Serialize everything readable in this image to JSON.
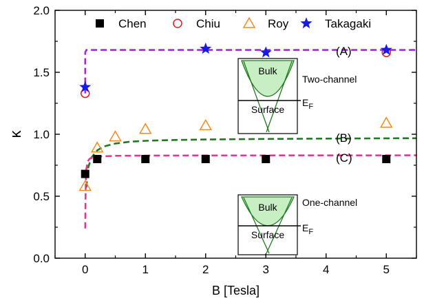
{
  "chart_data": {
    "type": "scatter",
    "xlabel": "B [Tesla]",
    "ylabel": "κ",
    "xlim": [
      -0.5,
      5.5
    ],
    "ylim": [
      0.0,
      2.0
    ],
    "xticks": [
      0,
      1,
      2,
      3,
      4,
      5
    ],
    "yticks": [
      0.0,
      0.5,
      1.0,
      1.5,
      2.0
    ],
    "xtick_labels": [
      "0",
      "1",
      "2",
      "3",
      "4",
      "5"
    ],
    "ytick_labels": [
      "0.0",
      "0.5",
      "1.0",
      "1.5",
      "2.0"
    ],
    "grid": false,
    "legend_position": "top",
    "series": [
      {
        "name": "Chen",
        "marker": "square-filled",
        "color": "#000000",
        "x": [
          0,
          0.2,
          1,
          2,
          3,
          5
        ],
        "y": [
          0.68,
          0.8,
          0.8,
          0.8,
          0.8,
          0.8
        ]
      },
      {
        "name": "Chiu",
        "marker": "circle-open",
        "color": "#e8151a",
        "x": [
          0,
          5
        ],
        "y": [
          1.33,
          1.66
        ]
      },
      {
        "name": "Roy",
        "marker": "triangle-open",
        "color": "#f28a1c",
        "x": [
          0,
          0.2,
          0.5,
          1,
          2,
          5
        ],
        "y": [
          0.58,
          0.89,
          0.98,
          1.04,
          1.07,
          1.09
        ]
      },
      {
        "name": "Takagaki",
        "marker": "star-filled",
        "color": "#1a1ae6",
        "x": [
          0,
          2,
          3,
          5
        ],
        "y": [
          1.38,
          1.69,
          1.66,
          1.68
        ]
      }
    ],
    "curves": [
      {
        "label": "(A)",
        "color": "#9b2fd6",
        "style": "dashed",
        "x": [
          0,
          0,
          0.02,
          5.5
        ],
        "y": [
          1.33,
          1.66,
          1.68,
          1.68
        ]
      },
      {
        "label": "(B)",
        "color": "#1e7a1e",
        "style": "dashed",
        "x": [
          0.02,
          0.05,
          0.1,
          0.2,
          0.3,
          0.5,
          0.75,
          1,
          1.5,
          2,
          3,
          4,
          5,
          5.5
        ],
        "y": [
          0.57,
          0.73,
          0.81,
          0.87,
          0.9,
          0.925,
          0.94,
          0.947,
          0.954,
          0.958,
          0.962,
          0.965,
          0.967,
          0.968
        ]
      },
      {
        "label": "(C)",
        "color": "#e8378a",
        "style": "dashed",
        "x": [
          0,
          0.005,
          0.01,
          0.02,
          0.04,
          0.07,
          0.1,
          0.2,
          0.5,
          1,
          2,
          5.5
        ],
        "y": [
          0.24,
          0.45,
          0.6,
          0.72,
          0.78,
          0.8,
          0.81,
          0.82,
          0.826,
          0.828,
          0.829,
          0.83
        ]
      }
    ],
    "insets": [
      {
        "top_label": "Bulk",
        "bottom_label": "Surface",
        "side_label": "Two-channel",
        "level_label": "E",
        "level_subscript": "F"
      },
      {
        "top_label": "Bulk",
        "bottom_label": "Surface",
        "side_label": "One-channel",
        "level_label": "E",
        "level_subscript": "F"
      }
    ]
  }
}
